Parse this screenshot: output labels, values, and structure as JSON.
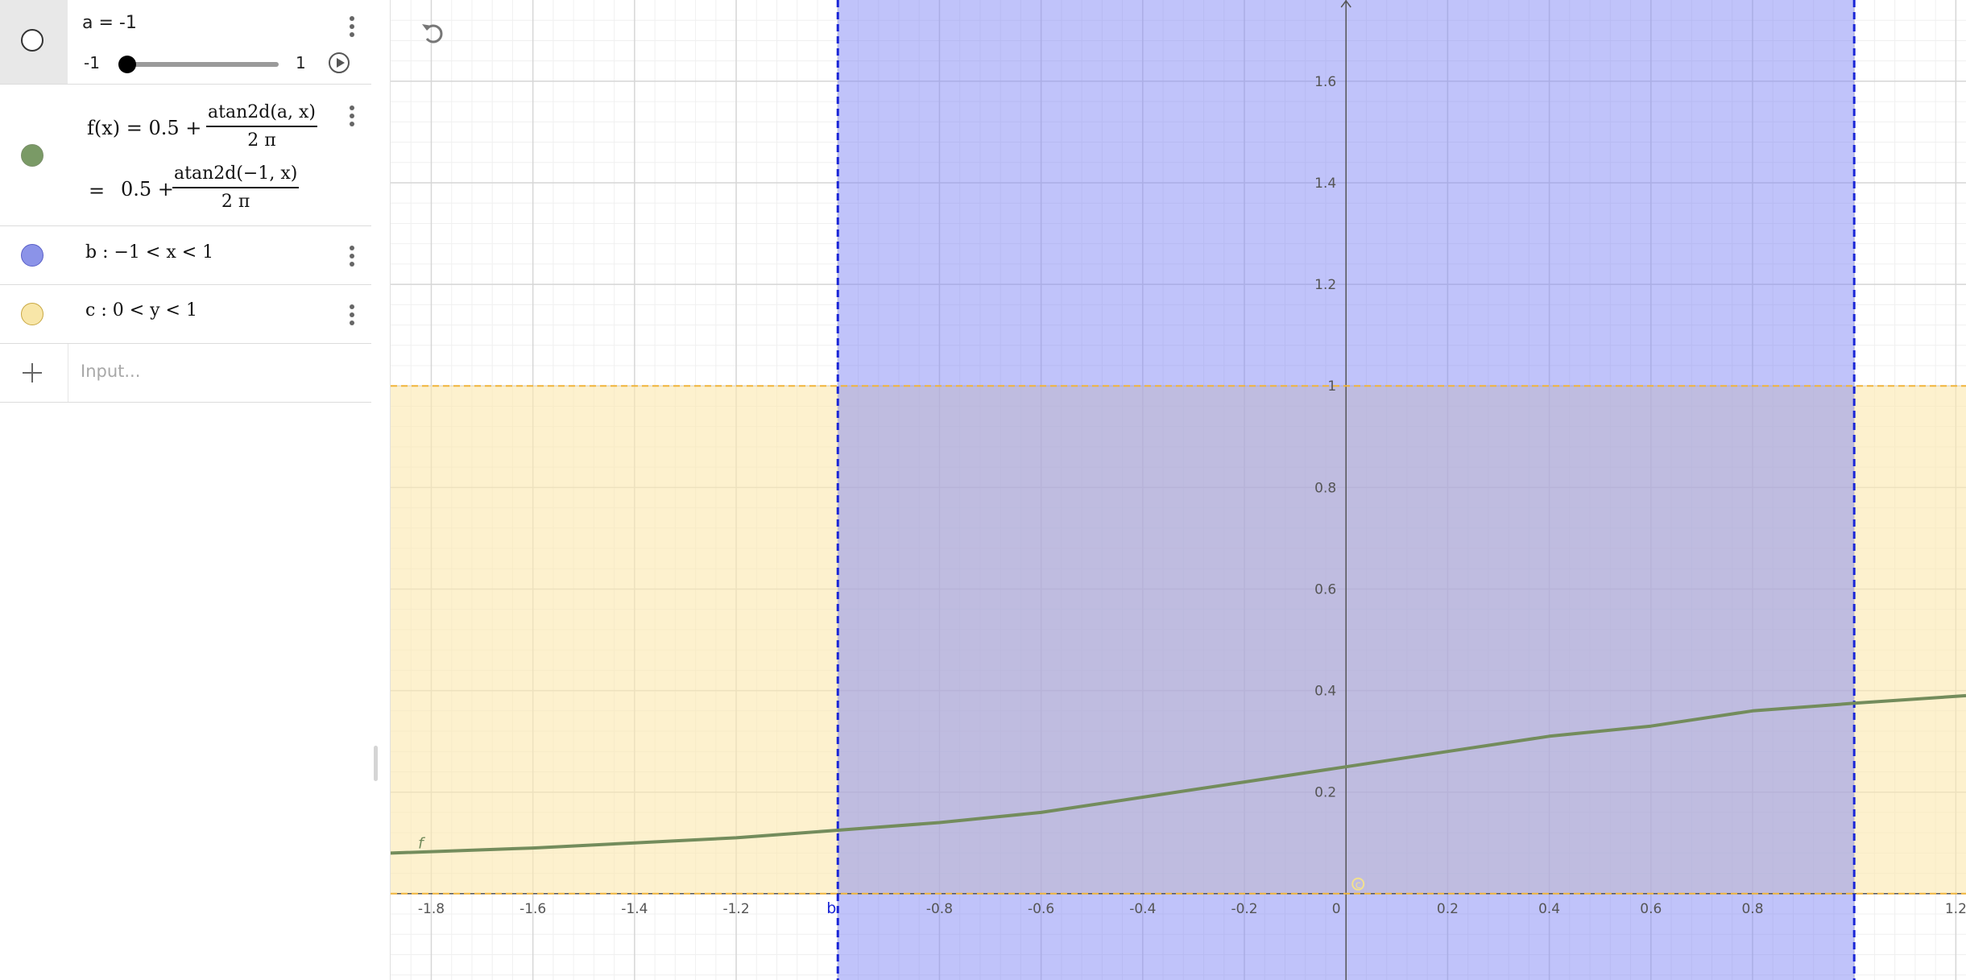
{
  "algebra": {
    "slider": {
      "label": "a = -1",
      "min_label": "-1",
      "max_label": "1",
      "value": -1,
      "min": -1,
      "max": 1,
      "icons": [
        "menu-icon",
        "play-icon"
      ]
    },
    "func": {
      "lhs": "f(x) = 0.5 +",
      "num": "atan2d(a, x)",
      "den": "2 π",
      "eq": "=",
      "lhs2": "0.5 +",
      "num2": "atan2d(−1, x)",
      "den2": "2 π",
      "color": "#7a9a66"
    },
    "b": {
      "text": "b : −1 < x < 1",
      "color": "#8b93e8"
    },
    "c": {
      "text": "c : 0 < y < 1",
      "color": "#f8e6a8"
    },
    "input": {
      "placeholder": "Input..."
    }
  },
  "graph": {
    "x_ticks": [
      "-1.8",
      "-1.6",
      "-1.4",
      "-1.2",
      "-0.8",
      "-0.6",
      "-0.4",
      "-0.2",
      "0",
      "0.2",
      "0.4",
      "0.6",
      "0.8",
      "1.2"
    ],
    "y_ticks": [
      "0.2",
      "0.4",
      "0.6",
      "0.8",
      "1",
      "1.2",
      "1.4",
      "1.6"
    ],
    "label_b": "b",
    "label_f": "f",
    "label_c": "c",
    "colors": {
      "region_b": "#7c82f4",
      "region_c": "#fbe9b0",
      "boundary_b": "#1a26d6",
      "boundary_c": "#f0b43a",
      "curve": "#738c5c",
      "axis": "#555555"
    }
  },
  "chart_data": {
    "type": "line",
    "title": "",
    "xlabel": "",
    "ylabel": "",
    "xlim": [
      -1.88,
      1.22
    ],
    "ylim": [
      -0.17,
      1.76
    ],
    "grid": true,
    "series": [
      {
        "name": "f",
        "x": [
          -1.88,
          -1.6,
          -1.4,
          -1.2,
          -1.0,
          -0.8,
          -0.6,
          -0.4,
          -0.2,
          0.0,
          0.2,
          0.4,
          0.6,
          0.8,
          1.0,
          1.22
        ],
        "y": [
          0.08,
          0.09,
          0.1,
          0.11,
          0.125,
          0.14,
          0.16,
          0.19,
          0.22,
          0.25,
          0.28,
          0.31,
          0.33,
          0.36,
          0.375,
          0.39
        ]
      }
    ],
    "regions": [
      {
        "name": "b",
        "axis": "x",
        "from": -1,
        "to": 1
      },
      {
        "name": "c",
        "axis": "y",
        "from": 0,
        "to": 1
      }
    ]
  }
}
